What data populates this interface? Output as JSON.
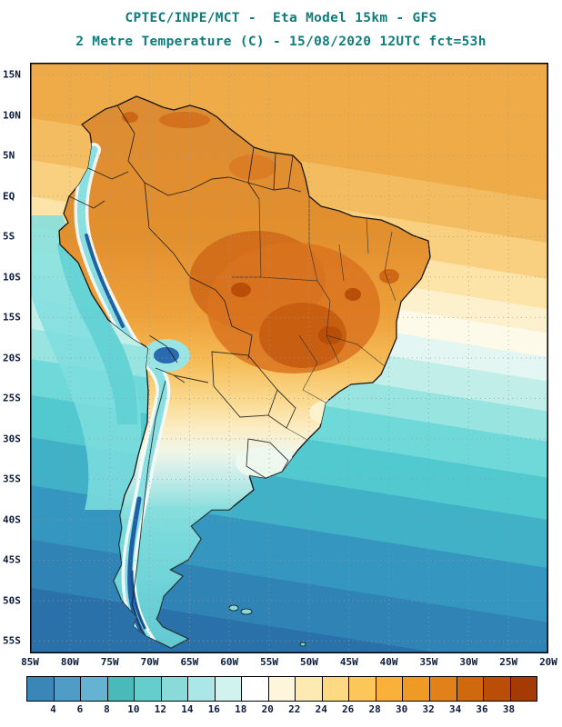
{
  "header": {
    "line1": "CPTEC/INPE/MCT -  Eta Model 15km - GFS",
    "line2": "2 Metre Temperature (C) - 15/08/2020 12UTC fct=53h"
  },
  "map": {
    "lat_ticks": [
      "15N",
      "10N",
      "5N",
      "EQ",
      "5S",
      "10S",
      "15S",
      "20S",
      "25S",
      "30S",
      "35S",
      "40S",
      "45S",
      "50S",
      "55S"
    ],
    "lon_ticks": [
      "85W",
      "80W",
      "75W",
      "70W",
      "65W",
      "60W",
      "55W",
      "50W",
      "45W",
      "40W",
      "35W",
      "30W",
      "25W",
      "20W"
    ]
  },
  "colorbar": {
    "tick_labels": [
      "4",
      "6",
      "8",
      "10",
      "12",
      "14",
      "16",
      "18",
      "20",
      "22",
      "24",
      "26",
      "28",
      "30",
      "32",
      "34",
      "36",
      "38"
    ],
    "colors": [
      "#3a87b7",
      "#4f9dc7",
      "#65b2d3",
      "#49b9b9",
      "#66cdcd",
      "#8adada",
      "#ace7e7",
      "#d2f2f0",
      "#ffffff",
      "#fdf5dc",
      "#fdeab2",
      "#fdd983",
      "#fdc75a",
      "#f9b13a",
      "#f09a26",
      "#e28118",
      "#d0680e",
      "#ba4e08",
      "#a43a04"
    ]
  }
}
